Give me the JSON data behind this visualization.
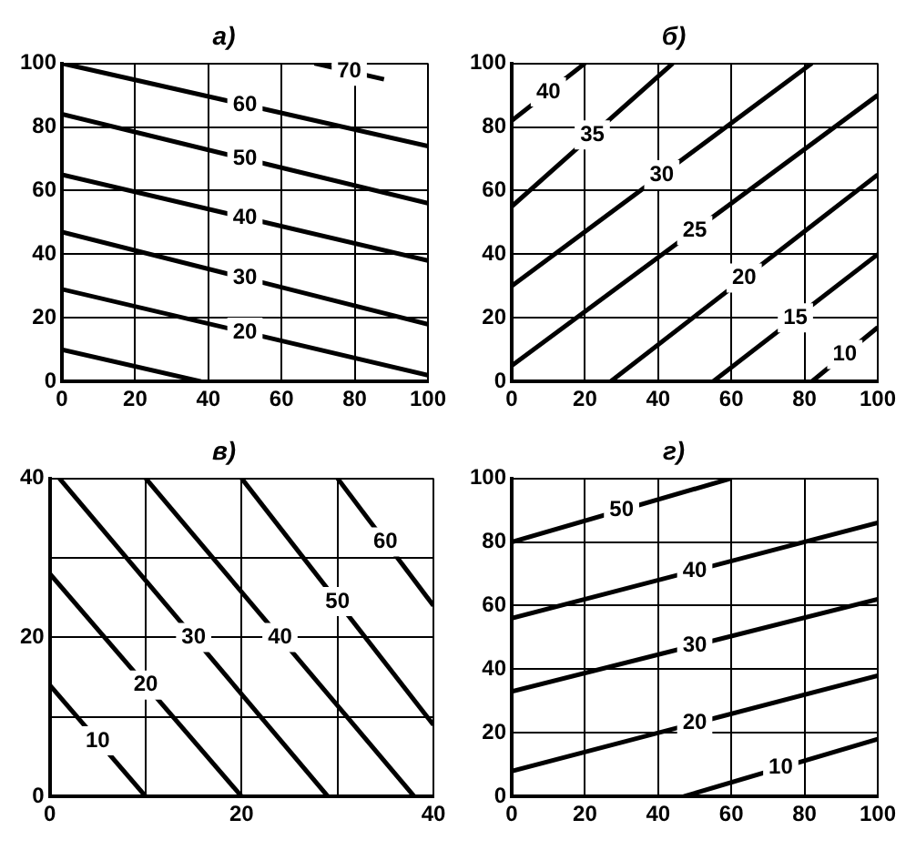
{
  "chart_data": [
    {
      "type": "line",
      "title": "а)",
      "xlim": [
        0,
        100
      ],
      "ylim": [
        0,
        100
      ],
      "xticks": [
        0,
        20,
        40,
        60,
        80,
        100
      ],
      "yticks": [
        0,
        20,
        40,
        60,
        80,
        100
      ],
      "grid": true,
      "legend": false,
      "marker": "none",
      "line_style": "solid",
      "series": [
        {
          "color": "#000000",
          "x": [
            0,
            38
          ],
          "values": [
            10,
            0
          ]
        },
        {
          "name": "20",
          "color": "#000000",
          "x": [
            0,
            100
          ],
          "values": [
            29,
            2
          ]
        },
        {
          "name": "30",
          "color": "#000000",
          "x": [
            0,
            100
          ],
          "values": [
            47,
            18
          ]
        },
        {
          "name": "40",
          "color": "#000000",
          "x": [
            0,
            100
          ],
          "values": [
            65,
            38
          ]
        },
        {
          "name": "50",
          "color": "#000000",
          "x": [
            0,
            100
          ],
          "values": [
            84,
            56
          ]
        },
        {
          "name": "60",
          "color": "#000000",
          "x": [
            0,
            100
          ],
          "values": [
            100,
            74
          ]
        },
        {
          "name": "70",
          "color": "#000000",
          "x": [
            69,
            88
          ],
          "values": [
            100,
            95
          ]
        }
      ]
    },
    {
      "type": "line",
      "title": "б)",
      "xlim": [
        0,
        100
      ],
      "ylim": [
        0,
        100
      ],
      "xticks": [
        0,
        20,
        40,
        60,
        80,
        100
      ],
      "yticks": [
        0,
        20,
        40,
        60,
        80,
        100
      ],
      "grid": true,
      "legend": false,
      "marker": "none",
      "line_style": "solid",
      "series": [
        {
          "name": "40",
          "color": "#000000",
          "x": [
            0,
            20
          ],
          "values": [
            82,
            100
          ]
        },
        {
          "name": "35",
          "color": "#000000",
          "x": [
            0,
            44
          ],
          "values": [
            55,
            100
          ]
        },
        {
          "name": "30",
          "color": "#000000",
          "x": [
            0,
            82
          ],
          "values": [
            30,
            100
          ]
        },
        {
          "name": "25",
          "color": "#000000",
          "x": [
            0,
            100
          ],
          "values": [
            5,
            90
          ]
        },
        {
          "name": "20",
          "color": "#000000",
          "x": [
            27,
            100
          ],
          "values": [
            0,
            65
          ]
        },
        {
          "name": "15",
          "color": "#000000",
          "x": [
            55,
            100
          ],
          "values": [
            0,
            40
          ]
        },
        {
          "name": "10",
          "color": "#000000",
          "x": [
            82,
            100
          ],
          "values": [
            0,
            17
          ]
        }
      ]
    },
    {
      "type": "line",
      "title": "в)",
      "xlim": [
        0,
        40
      ],
      "ylim": [
        0,
        40
      ],
      "xticks": [
        0,
        {
          "value": 10,
          "label": null
        },
        20,
        {
          "value": 30,
          "label": null
        },
        40
      ],
      "yticks": [
        0,
        {
          "value": 10,
          "label": null
        },
        20,
        {
          "value": 30,
          "label": null
        },
        40
      ],
      "grid": true,
      "legend": false,
      "marker": "none",
      "line_style": "solid",
      "series": [
        {
          "name": "10",
          "color": "#000000",
          "x": [
            0,
            10
          ],
          "values": [
            14,
            0
          ]
        },
        {
          "name": "20",
          "color": "#000000",
          "x": [
            0,
            20
          ],
          "values": [
            28,
            0
          ]
        },
        {
          "name": "30",
          "color": "#000000",
          "x": [
            1,
            29
          ],
          "values": [
            40,
            0
          ]
        },
        {
          "name": "40",
          "color": "#000000",
          "x": [
            10,
            38
          ],
          "values": [
            40,
            0
          ]
        },
        {
          "name": "50",
          "color": "#000000",
          "x": [
            20,
            40
          ],
          "values": [
            40,
            9
          ]
        },
        {
          "name": "60",
          "color": "#000000",
          "x": [
            30,
            40
          ],
          "values": [
            40,
            24
          ]
        }
      ]
    },
    {
      "type": "line",
      "title": "г)",
      "xlim": [
        0,
        100
      ],
      "ylim": [
        0,
        100
      ],
      "xticks": [
        0,
        20,
        40,
        60,
        80,
        100
      ],
      "yticks": [
        0,
        20,
        40,
        60,
        80,
        100
      ],
      "grid": true,
      "legend": false,
      "marker": "none",
      "line_style": "solid",
      "series": [
        {
          "name": "50",
          "color": "#000000",
          "x": [
            0,
            60
          ],
          "values": [
            80,
            100
          ]
        },
        {
          "name": "40",
          "color": "#000000",
          "x": [
            0,
            100
          ],
          "values": [
            56,
            86
          ]
        },
        {
          "name": "30",
          "color": "#000000",
          "x": [
            0,
            100
          ],
          "values": [
            33,
            62
          ]
        },
        {
          "name": "20",
          "color": "#000000",
          "x": [
            0,
            100
          ],
          "values": [
            8,
            38
          ]
        },
        {
          "name": "10",
          "color": "#000000",
          "x": [
            47,
            100
          ],
          "values": [
            0,
            18
          ]
        }
      ]
    }
  ]
}
